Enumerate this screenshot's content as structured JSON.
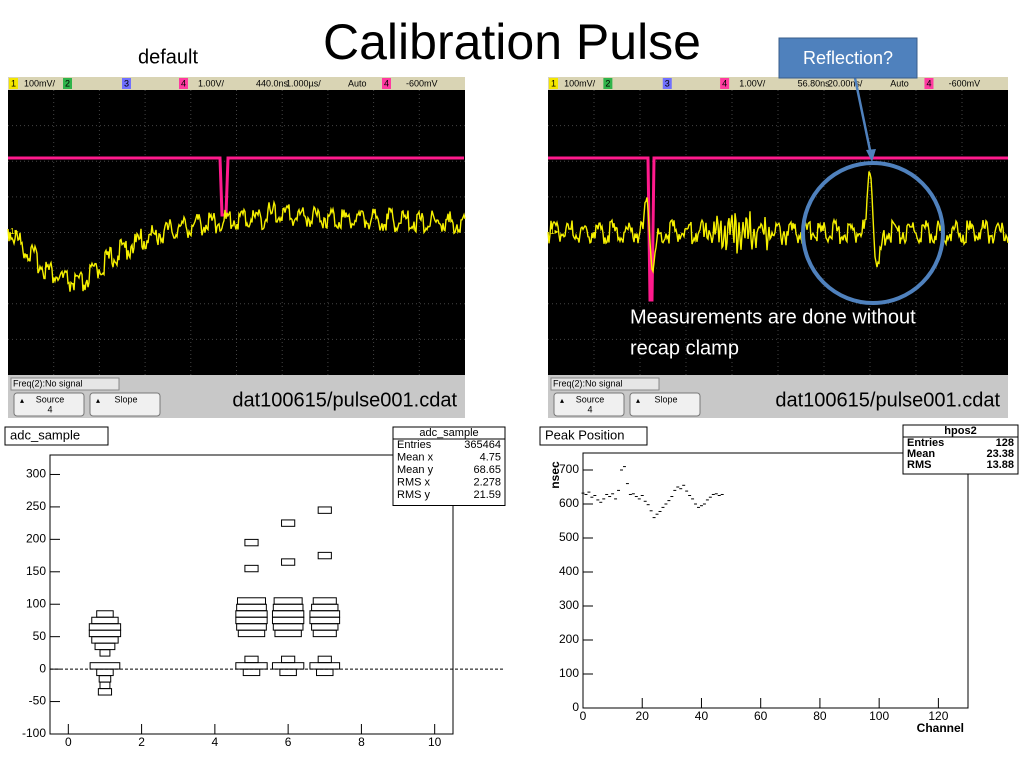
{
  "title": "Calibration Pulse",
  "label_default": "default",
  "callout": "Reflection?",
  "annotation": [
    "Measurements are done without",
    "recap clamp"
  ],
  "scopes": [
    {
      "bar": [
        "1",
        "100mV/",
        "2",
        "3",
        "4",
        "1.00V/",
        "440.0ns",
        "1.000µs/",
        "Auto",
        "4",
        "-600mV"
      ],
      "freq": "Freq(2):No signal",
      "source": "Source",
      "source_value": "4",
      "slope": "Slope",
      "file": "dat100615/pulse001.cdat"
    },
    {
      "bar": [
        "1",
        "100mV/",
        "2",
        "3",
        "4",
        "1.00V/",
        "56.80ns",
        "20.00ns/",
        "Auto",
        "4",
        "-600mV"
      ],
      "freq": "Freq(2):No signal",
      "source": "Source",
      "source_value": "4",
      "slope": "Slope",
      "file": "dat100615/pulse001.cdat"
    }
  ],
  "chart_data": [
    {
      "type": "box2d",
      "title": "adc_sample",
      "stats_title": "adc_sample",
      "stats": [
        {
          "label": "Entries",
          "value": 365464
        },
        {
          "label": "Mean x",
          "value": 4.75
        },
        {
          "label": "Mean y",
          "value": 68.65
        },
        {
          "label": "RMS x",
          "value": 2.278
        },
        {
          "label": "RMS y",
          "value": 21.59
        }
      ],
      "x": [
        1,
        1,
        1,
        1,
        1,
        1,
        1,
        1,
        1,
        1,
        1,
        1,
        5,
        5,
        5,
        5,
        5,
        5,
        5,
        5,
        5,
        5,
        5,
        6,
        6,
        6,
        6,
        6,
        6,
        6,
        6,
        6,
        6,
        6,
        7,
        7,
        7,
        7,
        7,
        7,
        7,
        7,
        7,
        7,
        7
      ],
      "y": [
        85,
        75,
        65,
        55,
        45,
        35,
        25,
        5,
        -5,
        -15,
        -25,
        -35,
        195,
        155,
        105,
        95,
        85,
        75,
        65,
        55,
        15,
        5,
        -5,
        225,
        165,
        105,
        95,
        85,
        75,
        65,
        55,
        15,
        5,
        -5,
        245,
        175,
        105,
        95,
        85,
        75,
        65,
        55,
        15,
        5,
        -5
      ],
      "size": [
        0.5,
        0.8,
        0.95,
        0.95,
        0.8,
        0.6,
        0.3,
        0.9,
        0.5,
        0.35,
        0.3,
        0.4,
        0.4,
        0.4,
        0.85,
        0.9,
        0.95,
        0.95,
        0.9,
        0.8,
        0.4,
        0.95,
        0.5,
        0.4,
        0.4,
        0.85,
        0.9,
        0.95,
        0.95,
        0.9,
        0.8,
        0.4,
        0.95,
        0.5,
        0.4,
        0.4,
        0.7,
        0.8,
        0.9,
        0.9,
        0.8,
        0.7,
        0.4,
        0.9,
        0.5
      ],
      "xlim": [
        -0.5,
        10.5
      ],
      "ylim": [
        -100,
        330
      ],
      "xticks": [
        0,
        2,
        4,
        6,
        8,
        10
      ],
      "yticks": [
        -100,
        -50,
        0,
        50,
        100,
        150,
        200,
        250,
        300
      ]
    },
    {
      "type": "scatter",
      "title": "Peak Position",
      "stats_title": "hpos2",
      "stats": [
        {
          "label": "Entries",
          "value": 128
        },
        {
          "label": "Mean",
          "value": 23.38
        },
        {
          "label": "RMS",
          "value": 13.88
        }
      ],
      "x_label": "Channel",
      "y_label": "nsec",
      "x": [
        0,
        1,
        2,
        3,
        4,
        5,
        6,
        7,
        8,
        9,
        10,
        11,
        12,
        13,
        14,
        15,
        16,
        17,
        18,
        19,
        20,
        21,
        22,
        23,
        24,
        25,
        26,
        27,
        28,
        29,
        30,
        31,
        32,
        33,
        34,
        35,
        36,
        37,
        38,
        39,
        40,
        41,
        42,
        43,
        44,
        45,
        46,
        47
      ],
      "values": [
        632,
        628,
        635,
        620,
        625,
        612,
        605,
        615,
        628,
        622,
        630,
        615,
        640,
        700,
        710,
        660,
        628,
        630,
        622,
        615,
        625,
        608,
        598,
        580,
        560,
        570,
        578,
        590,
        600,
        610,
        622,
        640,
        650,
        645,
        655,
        638,
        625,
        615,
        600,
        590,
        595,
        600,
        612,
        620,
        628,
        630,
        625,
        628
      ],
      "xlim": [
        0,
        130
      ],
      "ylim": [
        0,
        750
      ],
      "xticks": [
        0,
        20,
        40,
        60,
        80,
        100,
        120
      ],
      "yticks": [
        0,
        100,
        200,
        300,
        400,
        500,
        600,
        700
      ]
    }
  ]
}
